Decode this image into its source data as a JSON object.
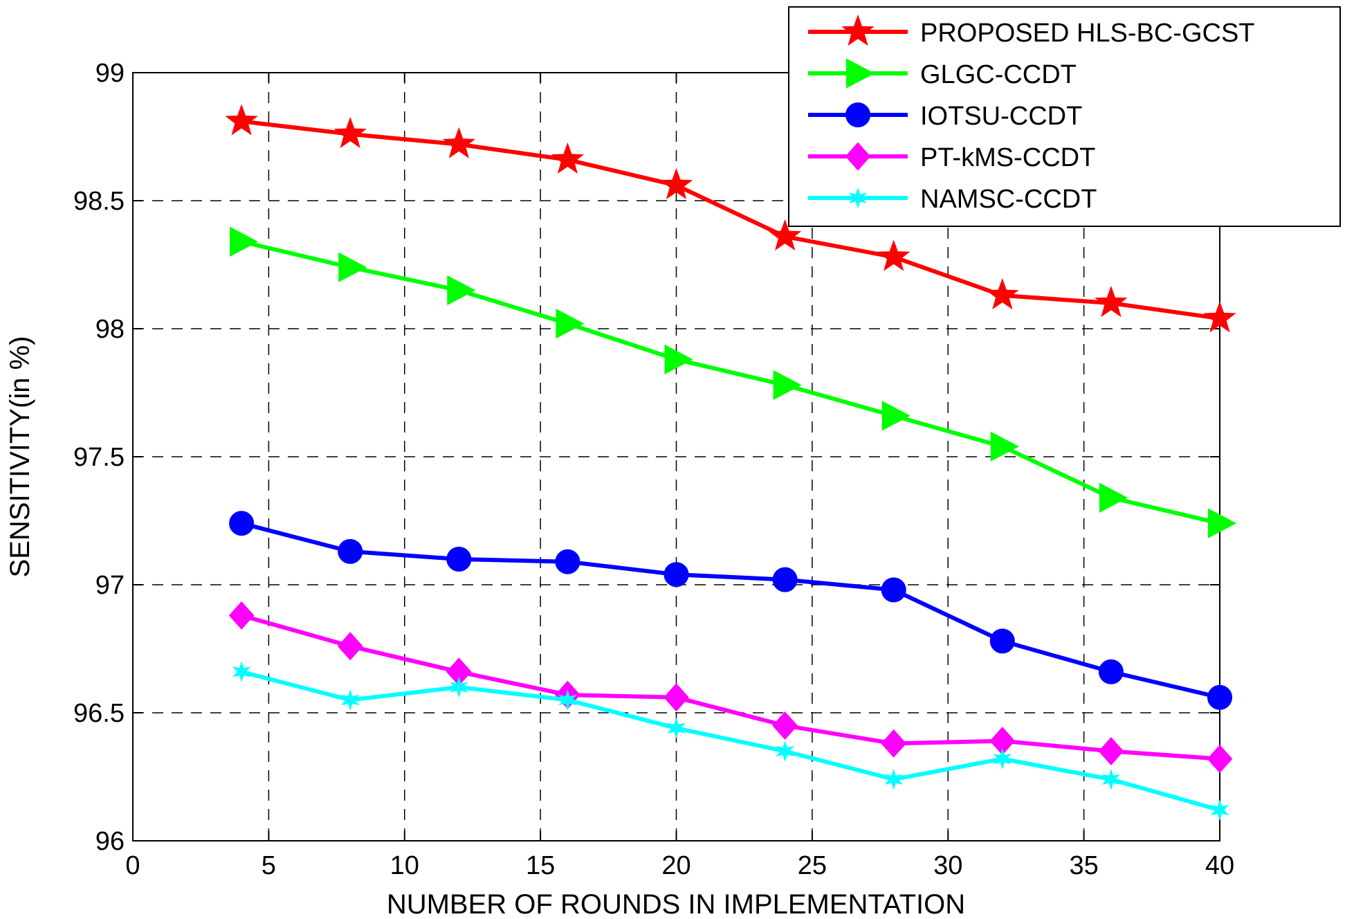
{
  "chart_data": {
    "type": "line",
    "title": "",
    "xlabel": "NUMBER OF ROUNDS IN IMPLEMENTATION",
    "ylabel": "SENSITIVITY(in %)",
    "xlim": [
      0,
      40
    ],
    "ylim": [
      96,
      99
    ],
    "xticks": [
      0,
      5,
      10,
      15,
      20,
      25,
      30,
      35,
      40
    ],
    "yticks": [
      96,
      96.5,
      97,
      97.5,
      98,
      98.5,
      99
    ],
    "xtick_labels": [
      "0",
      "5",
      "10",
      "15",
      "20",
      "25",
      "30",
      "35",
      "40"
    ],
    "ytick_labels": [
      "96",
      "96.5",
      "97",
      "97.5",
      "98",
      "98.5",
      "99"
    ],
    "grid": true,
    "legend_position": "top-right",
    "x": [
      4,
      8,
      12,
      16,
      20,
      24,
      28,
      32,
      36,
      40
    ],
    "series": [
      {
        "name": "PROPOSED HLS-BC-GCST",
        "color": "#ff0000",
        "marker": "star",
        "values": [
          98.81,
          98.76,
          98.72,
          98.66,
          98.56,
          98.36,
          98.28,
          98.13,
          98.1,
          98.04
        ]
      },
      {
        "name": "GLGC-CCDT",
        "color": "#00ff00",
        "marker": "triangle-right",
        "values": [
          98.34,
          98.24,
          98.15,
          98.02,
          97.88,
          97.78,
          97.66,
          97.54,
          97.34,
          97.24
        ]
      },
      {
        "name": "IOTSU-CCDT",
        "color": "#0000ff",
        "marker": "circle",
        "values": [
          97.24,
          97.13,
          97.1,
          97.09,
          97.04,
          97.02,
          96.98,
          96.78,
          96.66,
          96.56
        ]
      },
      {
        "name": "PT-kMS-CCDT",
        "color": "#ff00ff",
        "marker": "diamond",
        "values": [
          96.88,
          96.76,
          96.66,
          96.57,
          96.56,
          96.45,
          96.38,
          96.39,
          96.35,
          96.32
        ]
      },
      {
        "name": "NAMSC-CCDT",
        "color": "#00ffff",
        "marker": "hexagram",
        "values": [
          96.66,
          96.55,
          96.6,
          96.55,
          96.44,
          96.35,
          96.24,
          96.32,
          96.24,
          96.12
        ]
      }
    ]
  }
}
